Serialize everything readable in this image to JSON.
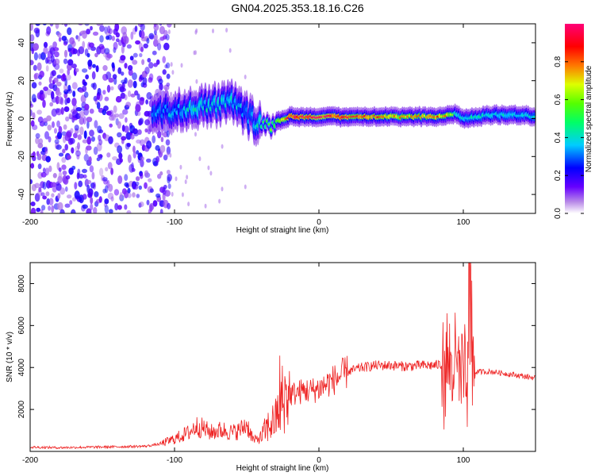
{
  "title": "GN04.2025.353.18.16.C26",
  "colors": {
    "snr_line": "#ee2222",
    "axis": "#000000",
    "background": "#ffffff"
  },
  "chart_data": [
    {
      "type": "heatmap",
      "name": "spectrogram",
      "xlabel": "Height of straight line (km)",
      "ylabel": "Frequency (Hz)",
      "xlim": [
        -200,
        150
      ],
      "ylim": [
        -50,
        50
      ],
      "x_ticks": [
        -200,
        -100,
        0,
        100
      ],
      "x_tick_labels": [
        "-200",
        "-100",
        "0",
        "100"
      ],
      "y_ticks": [
        -40,
        -20,
        0,
        20,
        40
      ],
      "y_tick_labels": [
        "-40",
        "-20",
        "0",
        "20",
        "40"
      ],
      "colorbar": {
        "label": "Normalized spectral amplitude",
        "range": [
          0,
          1
        ],
        "ticks": [
          0.0,
          0.2,
          0.4,
          0.6,
          0.8
        ],
        "tick_labels": [
          "0.0",
          "0.2",
          "0.4",
          "0.6",
          "0.8"
        ],
        "colormap": "rainbow (white-violet-blue-cyan-green-yellow-red-magenta)"
      },
      "ridge": {
        "x": [
          -115,
          -100,
          -90,
          -80,
          -70,
          -60,
          -55,
          -50,
          -45,
          -40,
          -35,
          -30,
          -25,
          -20,
          -10,
          0,
          20,
          40,
          60,
          80,
          90,
          95,
          100,
          110,
          120,
          130,
          140,
          150
        ],
        "freq": [
          3,
          4,
          5,
          6,
          7,
          8,
          6,
          2,
          -1,
          -3,
          -4,
          -2,
          0,
          1,
          1,
          1,
          1,
          1,
          1,
          1,
          2,
          3,
          0,
          1,
          2,
          2,
          2,
          1
        ],
        "amplitude": [
          0.3,
          0.35,
          0.4,
          0.4,
          0.4,
          0.4,
          0.35,
          0.3,
          0.35,
          0.45,
          0.5,
          0.6,
          0.7,
          0.85,
          0.9,
          0.9,
          0.85,
          0.8,
          0.7,
          0.8,
          0.7,
          0.45,
          0.4,
          0.45,
          0.4,
          0.4,
          0.4,
          0.4
        ]
      },
      "noise_region": {
        "x_range": [
          -200,
          -105
        ],
        "freq_range": [
          -50,
          50
        ],
        "amplitude": 0.2
      }
    },
    {
      "type": "line",
      "name": "snr",
      "xlabel": "Height of straight line (km)",
      "ylabel": "SNR (10 * v/v)",
      "xlim": [
        -200,
        150
      ],
      "ylim": [
        0,
        9000
      ],
      "x_ticks": [
        -200,
        -100,
        0,
        100
      ],
      "x_tick_labels": [
        "-200",
        "-100",
        "0",
        "100"
      ],
      "y_ticks": [
        2000,
        4000,
        6000,
        8000
      ],
      "y_tick_labels": [
        "2000",
        "4000",
        "6000",
        "8000"
      ],
      "series": [
        {
          "name": "SNR",
          "x": [
            -200,
            -180,
            -160,
            -140,
            -120,
            -110,
            -100,
            -90,
            -85,
            -80,
            -75,
            -70,
            -65,
            -60,
            -55,
            -50,
            -45,
            -40,
            -35,
            -30,
            -25,
            -20,
            -15,
            -10,
            -5,
            0,
            10,
            20,
            30,
            40,
            50,
            60,
            70,
            80,
            90,
            95,
            100,
            103,
            105,
            110,
            120,
            130,
            140,
            150
          ],
          "values": [
            200,
            180,
            200,
            220,
            250,
            350,
            600,
            900,
            1200,
            1100,
            900,
            1000,
            1000,
            900,
            1000,
            1300,
            500,
            700,
            1200,
            1500,
            2600,
            2700,
            2800,
            2900,
            2900,
            3000,
            3400,
            3800,
            4000,
            4100,
            4100,
            4050,
            4100,
            4100,
            4200,
            4000,
            3500,
            3000,
            3700,
            3800,
            3800,
            3700,
            3600,
            3500
          ]
        }
      ]
    }
  ]
}
